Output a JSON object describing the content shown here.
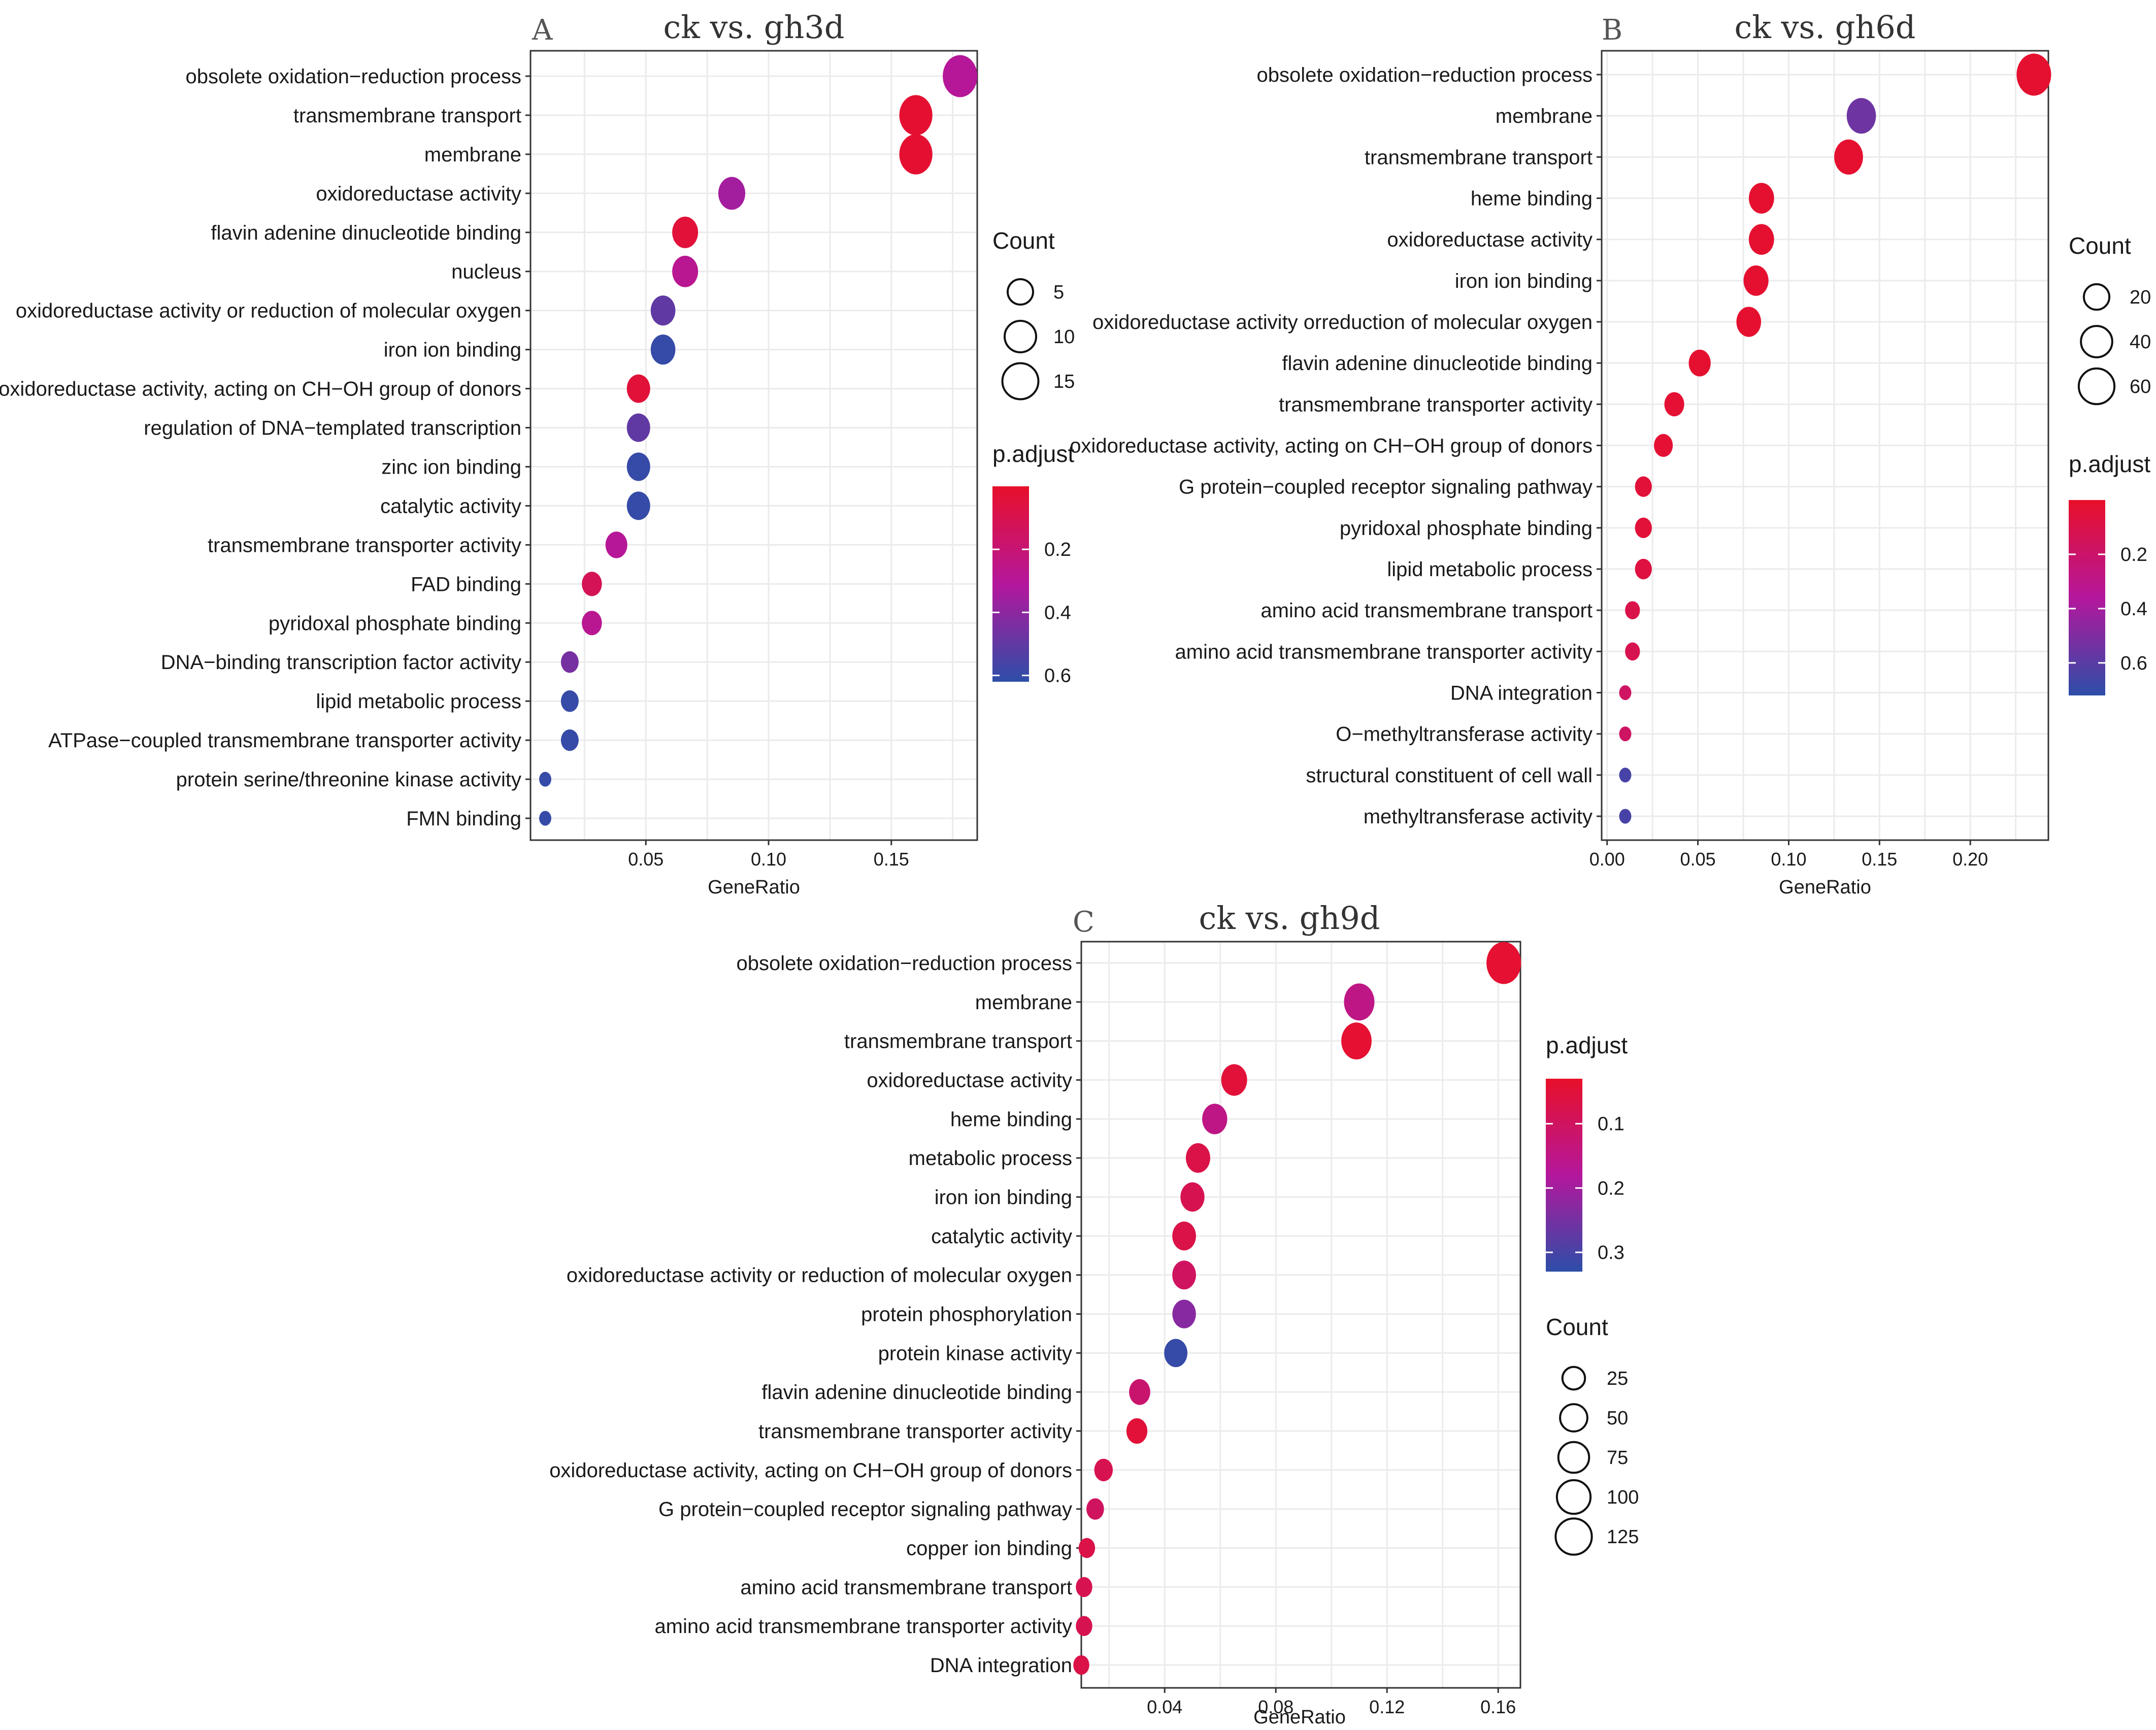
{
  "chart_data": [
    {
      "type": "scatter",
      "panel": "A",
      "title": "ck vs. gh3d",
      "xlabel": "GeneRatio",
      "ylabel": "",
      "xlim": [
        0.003,
        0.185
      ],
      "xticks": [
        0.05,
        0.1,
        0.15
      ],
      "xtick_labels": [
        "0.05",
        "0.10",
        "0.15"
      ],
      "grid": true,
      "size_legend": {
        "title": "Count",
        "values": [
          5,
          10,
          15
        ],
        "labels": [
          "5",
          "10",
          "15"
        ]
      },
      "color_legend": {
        "title": "p.adjust",
        "ticks": [
          0.2,
          0.4,
          0.6
        ],
        "labels": [
          "0.2",
          "0.4",
          "0.6"
        ],
        "range": [
          0.0,
          0.62
        ],
        "low_color": "#e8102a",
        "mid_color": "#b4179c",
        "high_color": "#2d4ea8"
      },
      "size_range": [
        1,
        17
      ],
      "terms": [
        "obsolete oxidation−reduction process",
        "transmembrane transport",
        "membrane",
        "oxidoreductase activity",
        "flavin adenine dinucleotide binding",
        "nucleus",
        "oxidoreductase activity or reduction of molecular oxygen",
        "iron ion binding",
        "oxidoreductase activity, acting on CH−OH group of donors",
        "regulation of DNA−templated transcription",
        "zinc ion binding",
        "catalytic activity",
        "transmembrane transporter activity",
        "FAD binding",
        "pyridoxal phosphate binding",
        "DNA−binding transcription factor activity",
        "lipid metabolic process",
        "ATPase−coupled transmembrane transporter activity",
        "protein serine/threonine kinase activity",
        "FMN binding"
      ],
      "gene_ratio": [
        0.178,
        0.16,
        0.16,
        0.085,
        0.066,
        0.066,
        0.057,
        0.057,
        0.047,
        0.047,
        0.047,
        0.047,
        0.038,
        0.028,
        0.028,
        0.019,
        0.019,
        0.019,
        0.009,
        0.009
      ],
      "count": [
        17,
        15,
        15,
        8,
        7,
        7,
        6,
        6,
        5,
        5,
        5,
        5,
        4,
        3,
        3,
        2,
        2,
        2,
        1,
        1
      ],
      "p_adjust": [
        0.3,
        0.02,
        0.02,
        0.35,
        0.04,
        0.28,
        0.5,
        0.6,
        0.04,
        0.5,
        0.6,
        0.6,
        0.3,
        0.12,
        0.28,
        0.45,
        0.6,
        0.6,
        0.6,
        0.6
      ]
    },
    {
      "type": "scatter",
      "panel": "B",
      "title": "ck vs. gh6d",
      "xlabel": "GeneRatio",
      "ylabel": "",
      "xlim": [
        -0.003,
        0.243
      ],
      "xticks": [
        0.0,
        0.05,
        0.1,
        0.15,
        0.2
      ],
      "xtick_labels": [
        "0.00",
        "0.05",
        "0.10",
        "0.15",
        "0.20"
      ],
      "grid": true,
      "size_legend": {
        "title": "Count",
        "values": [
          20,
          40,
          60
        ],
        "labels": [
          "20",
          "40",
          "60"
        ]
      },
      "color_legend": {
        "title": "p.adjust",
        "ticks": [
          0.2,
          0.4,
          0.6
        ],
        "labels": [
          "0.2",
          "0.4",
          "0.6"
        ],
        "range": [
          0.0,
          0.72
        ],
        "low_color": "#e8102a",
        "mid_color": "#b4179c",
        "high_color": "#2d4ea8"
      },
      "size_range": [
        3,
        70
      ],
      "terms": [
        "obsolete oxidation−reduction process",
        "membrane",
        "transmembrane transport",
        "heme binding",
        "oxidoreductase activity",
        "iron ion binding",
        "oxidoreductase activity orreduction of molecular oxygen",
        "flavin adenine dinucleotide binding",
        "transmembrane transporter activity",
        "oxidoreductase activity, acting on CH−OH group of donors",
        "G protein−coupled receptor signaling pathway",
        "pyridoxal phosphate binding",
        "lipid metabolic process",
        "amino acid transmembrane transport",
        "amino acid transmembrane transporter activity",
        "DNA integration",
        "O−methyltransferase activity",
        "structural constituent of cell wall",
        "methyltransferase activity"
      ],
      "gene_ratio": [
        0.235,
        0.14,
        0.133,
        0.085,
        0.085,
        0.082,
        0.078,
        0.051,
        0.037,
        0.031,
        0.02,
        0.02,
        0.02,
        0.014,
        0.014,
        0.01,
        0.01,
        0.01,
        0.01
      ],
      "count": [
        70,
        42,
        40,
        26,
        26,
        25,
        24,
        16,
        11,
        9,
        6,
        6,
        6,
        4,
        4,
        3,
        3,
        3,
        3
      ],
      "p_adjust": [
        0.02,
        0.55,
        0.02,
        0.02,
        0.02,
        0.02,
        0.02,
        0.02,
        0.03,
        0.03,
        0.05,
        0.05,
        0.07,
        0.1,
        0.12,
        0.18,
        0.18,
        0.65,
        0.65
      ]
    },
    {
      "type": "scatter",
      "panel": "C",
      "title": "ck vs. gh9d",
      "xlabel": "GeneRatio",
      "ylabel": "",
      "xlim": [
        0.01,
        0.168
      ],
      "xticks": [
        0.04,
        0.08,
        0.12,
        0.16
      ],
      "xtick_labels": [
        "0.04",
        "0.08",
        "0.12",
        "0.16"
      ],
      "grid": true,
      "size_legend": {
        "title": "Count",
        "values": [
          25,
          50,
          75,
          100,
          125
        ],
        "labels": [
          "25",
          "50",
          "75",
          "100",
          "125"
        ]
      },
      "color_legend": {
        "title": "p.adjust",
        "ticks": [
          0.1,
          0.2,
          0.3
        ],
        "labels": [
          "0.1",
          "0.2",
          "0.3"
        ],
        "range": [
          0.03,
          0.33
        ],
        "low_color": "#e8102a",
        "mid_color": "#b4179c",
        "high_color": "#2d4ea8"
      },
      "size_range": [
        5,
        140
      ],
      "terms": [
        "obsolete oxidation−reduction process",
        "membrane",
        "transmembrane transport",
        "oxidoreductase activity",
        "heme binding",
        "metabolic process",
        "iron ion binding",
        "catalytic activity",
        "oxidoreductase activity or reduction of molecular oxygen",
        "protein phosphorylation",
        "protein kinase activity",
        "flavin adenine dinucleotide binding",
        "transmembrane transporter activity",
        "oxidoreductase activity, acting on CH−OH group of donors",
        "G protein−coupled receptor signaling pathway",
        "copper ion binding",
        "amino acid transmembrane transport",
        "amino acid transmembrane transporter activity",
        "DNA integration"
      ],
      "gene_ratio": [
        0.162,
        0.11,
        0.109,
        0.065,
        0.058,
        0.052,
        0.05,
        0.047,
        0.047,
        0.047,
        0.044,
        0.031,
        0.03,
        0.018,
        0.015,
        0.012,
        0.011,
        0.011,
        0.01
      ],
      "count": [
        140,
        95,
        94,
        56,
        50,
        45,
        43,
        41,
        41,
        40,
        38,
        27,
        26,
        16,
        13,
        10,
        10,
        10,
        9
      ],
      "p_adjust": [
        0.04,
        0.15,
        0.04,
        0.05,
        0.15,
        0.07,
        0.08,
        0.07,
        0.1,
        0.23,
        0.32,
        0.12,
        0.05,
        0.08,
        0.1,
        0.07,
        0.08,
        0.08,
        0.07
      ]
    }
  ]
}
